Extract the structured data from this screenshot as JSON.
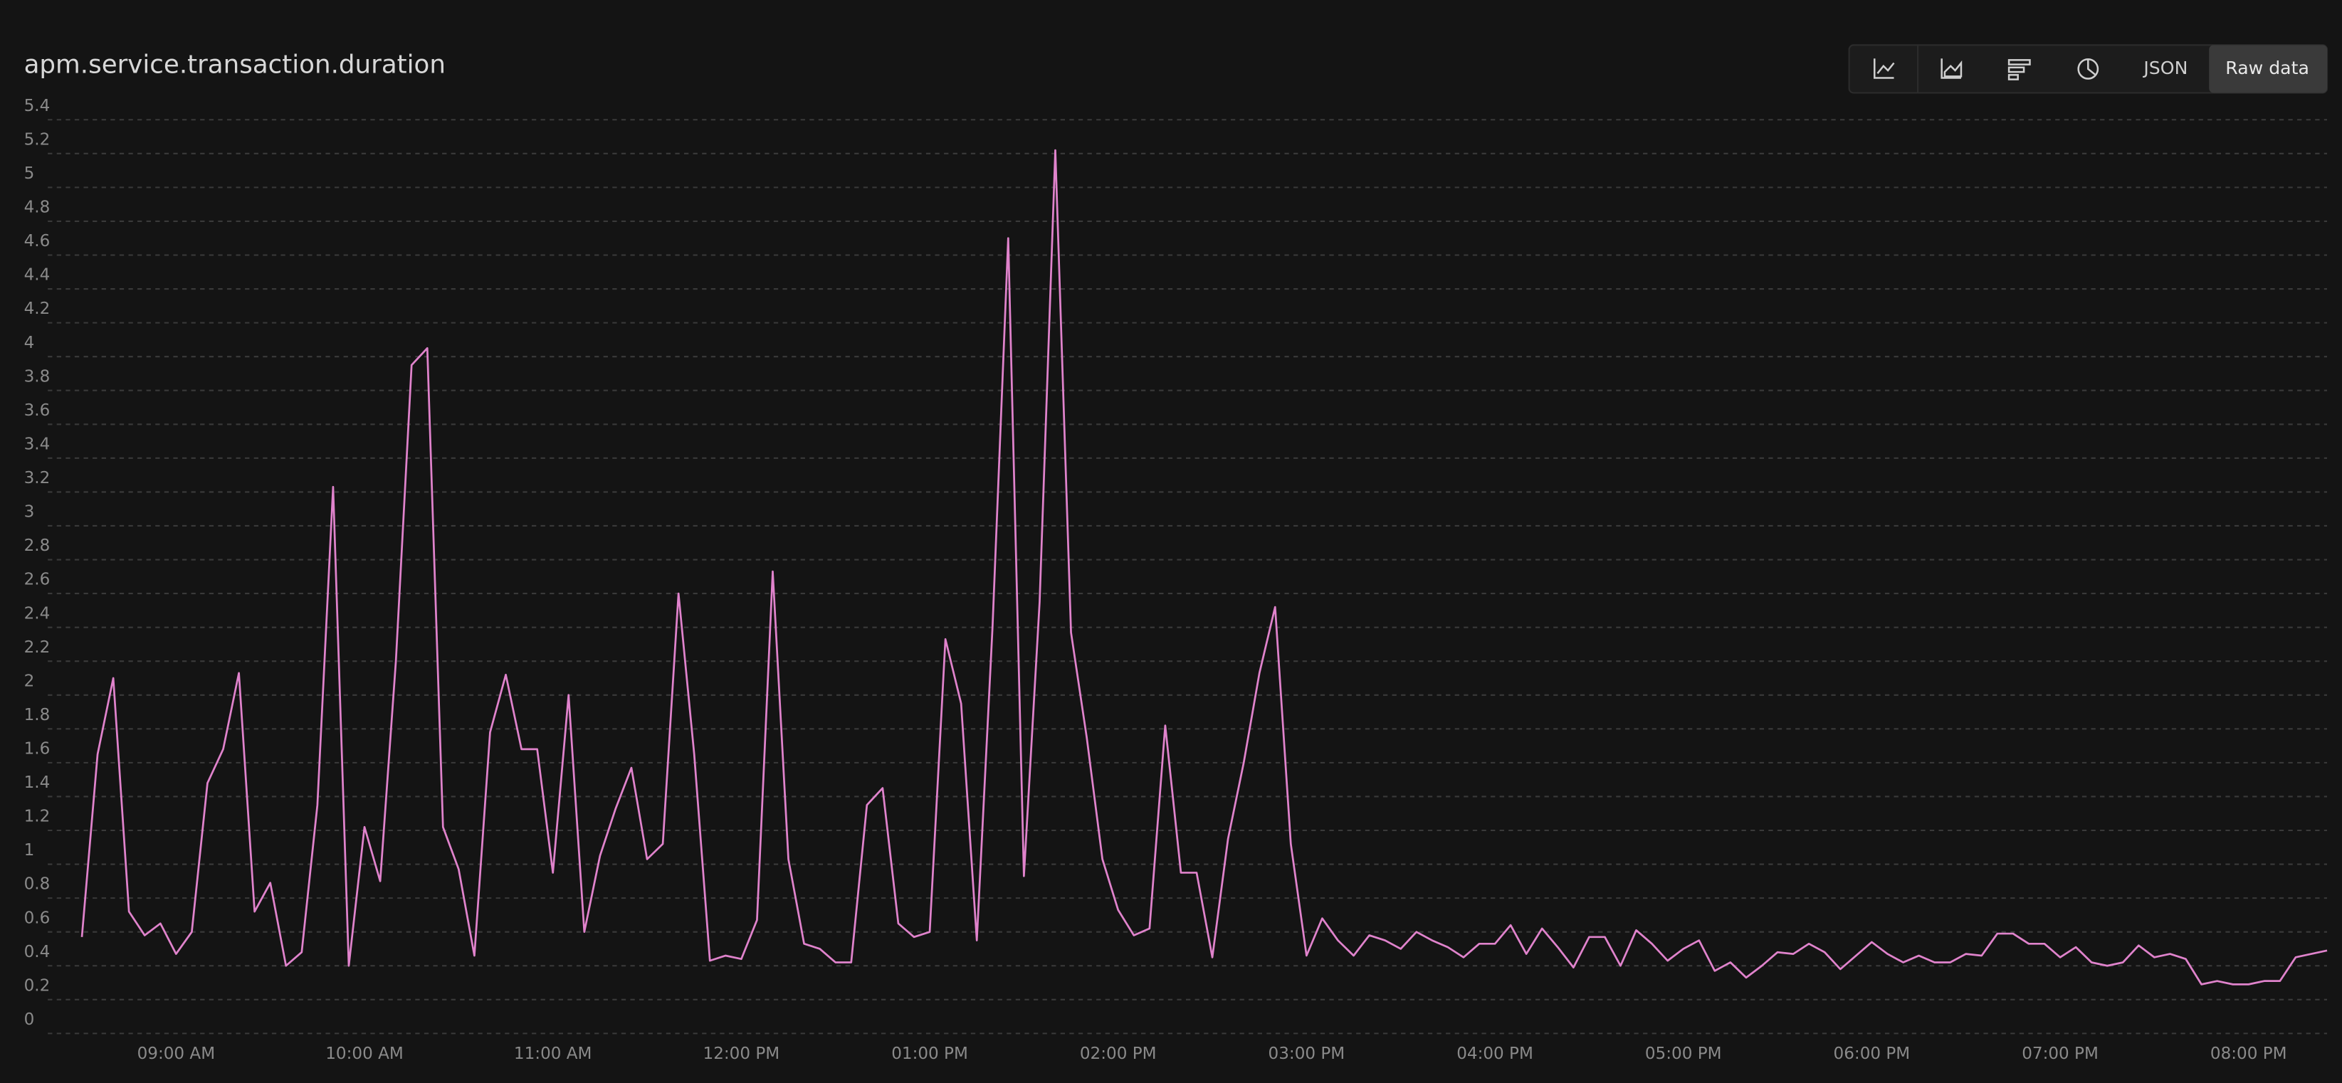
{
  "chart_data": {
    "type": "line",
    "title": "apm.service.transaction.duration",
    "color": "#e083cc",
    "grid": true,
    "x": [
      "08:30 AM",
      "08:35 AM",
      "08:40 AM",
      "08:45 AM",
      "08:50 AM",
      "08:55 AM",
      "09:00 AM",
      "09:05 AM",
      "09:10 AM",
      "09:15 AM",
      "09:20 AM",
      "09:25 AM",
      "09:30 AM",
      "09:35 AM",
      "09:40 AM",
      "09:45 AM",
      "09:50 AM",
      "09:55 AM",
      "10:00 AM",
      "10:05 AM",
      "10:10 AM",
      "10:15 AM",
      "10:20 AM",
      "10:25 AM",
      "10:30 AM",
      "10:35 AM",
      "10:40 AM",
      "10:45 AM",
      "10:50 AM",
      "10:55 AM",
      "11:00 AM",
      "11:05 AM",
      "11:10 AM",
      "11:15 AM",
      "11:20 AM",
      "11:25 AM",
      "11:30 AM",
      "11:35 AM",
      "11:40 AM",
      "11:45 AM",
      "11:50 AM",
      "11:55 AM",
      "12:00 PM",
      "12:05 PM",
      "12:10 PM",
      "12:15 PM",
      "12:20 PM",
      "12:25 PM",
      "12:30 PM",
      "12:35 PM",
      "12:40 PM",
      "12:45 PM",
      "12:50 PM",
      "12:55 PM",
      "01:00 PM",
      "01:05 PM",
      "01:10 PM",
      "01:15 PM",
      "01:20 PM",
      "01:25 PM",
      "01:30 PM",
      "01:35 PM",
      "01:40 PM",
      "01:45 PM",
      "01:50 PM",
      "01:55 PM",
      "02:00 PM",
      "02:05 PM",
      "02:10 PM",
      "02:15 PM",
      "02:20 PM",
      "02:25 PM",
      "02:30 PM",
      "02:35 PM",
      "02:40 PM",
      "02:45 PM",
      "02:50 PM",
      "02:55 PM",
      "03:00 PM",
      "03:05 PM",
      "03:10 PM",
      "03:15 PM",
      "03:20 PM",
      "03:25 PM",
      "03:30 PM",
      "03:35 PM",
      "03:40 PM",
      "03:45 PM",
      "03:50 PM",
      "03:55 PM",
      "04:00 PM",
      "04:05 PM",
      "04:10 PM",
      "04:15 PM",
      "04:20 PM",
      "04:25 PM",
      "04:30 PM",
      "04:35 PM",
      "04:40 PM",
      "04:45 PM",
      "04:50 PM",
      "04:55 PM",
      "05:00 PM",
      "05:05 PM",
      "05:10 PM",
      "05:15 PM",
      "05:20 PM",
      "05:25 PM",
      "05:30 PM",
      "05:35 PM",
      "05:40 PM",
      "05:45 PM",
      "05:50 PM",
      "05:55 PM",
      "06:00 PM",
      "06:05 PM",
      "06:10 PM",
      "06:15 PM",
      "06:20 PM",
      "06:25 PM",
      "06:30 PM",
      "06:35 PM",
      "06:40 PM",
      "06:45 PM",
      "06:50 PM",
      "06:55 PM",
      "07:00 PM",
      "07:05 PM",
      "07:10 PM",
      "07:15 PM",
      "07:20 PM",
      "07:25 PM",
      "07:30 PM",
      "07:35 PM",
      "07:40 PM",
      "07:45 PM",
      "07:50 PM",
      "07:55 PM",
      "08:00 PM",
      "08:05 PM",
      "08:10 PM",
      "08:15 PM",
      "08:20 PM",
      "08:25 PM"
    ],
    "values": [
      0.57,
      1.65,
      2.1,
      0.72,
      0.58,
      0.65,
      0.47,
      0.6,
      1.48,
      1.68,
      2.13,
      0.72,
      0.89,
      0.4,
      0.48,
      1.35,
      3.23,
      0.4,
      1.22,
      0.9,
      2.2,
      3.95,
      4.05,
      1.22,
      0.97,
      0.46,
      1.78,
      2.12,
      1.68,
      1.68,
      0.95,
      2.0,
      0.6,
      1.05,
      1.33,
      1.57,
      1.03,
      1.12,
      2.6,
      1.65,
      0.43,
      0.46,
      0.44,
      0.67,
      2.73,
      1.03,
      0.53,
      0.5,
      0.42,
      0.42,
      1.35,
      1.45,
      0.65,
      0.57,
      0.6,
      2.33,
      1.95,
      0.55,
      2.4,
      4.7,
      0.93,
      2.55,
      5.22,
      2.37,
      1.75,
      1.03,
      0.73,
      0.58,
      0.62,
      1.82,
      0.95,
      0.95,
      0.45,
      1.15,
      1.6,
      2.13,
      2.52,
      1.12,
      0.46,
      0.68,
      0.55,
      0.46,
      0.58,
      0.55,
      0.5,
      0.6,
      0.55,
      0.51,
      0.45,
      0.53,
      0.53,
      0.64,
      0.47,
      0.62,
      0.51,
      0.39,
      0.57,
      0.57,
      0.4,
      0.61,
      0.53,
      0.43,
      0.5,
      0.55,
      0.37,
      0.42,
      0.33,
      0.4,
      0.48,
      0.47,
      0.53,
      0.48,
      0.38,
      0.46,
      0.54,
      0.47,
      0.42,
      0.46,
      0.42,
      0.42,
      0.47,
      0.46,
      0.59,
      0.59,
      0.53,
      0.53,
      0.45,
      0.51,
      0.42,
      0.4,
      0.42,
      0.52,
      0.45,
      0.47,
      0.44,
      0.29,
      0.31,
      0.29,
      0.29,
      0.31,
      0.31,
      0.45,
      0.47,
      0.49
    ],
    "xlim": [
      "08:22 AM",
      "08:25 PM"
    ],
    "xticks": [
      "09:00 AM",
      "10:00 AM",
      "11:00 AM",
      "12:00 PM",
      "01:00 PM",
      "02:00 PM",
      "03:00 PM",
      "04:00 PM",
      "05:00 PM",
      "06:00 PM",
      "07:00 PM",
      "08:00 PM"
    ],
    "ylim": [
      0,
      5.4
    ],
    "yticks": [
      0,
      0.2,
      0.4,
      0.6,
      0.8,
      1,
      1.2,
      1.4,
      1.6,
      1.8,
      2,
      2.2,
      2.4,
      2.6,
      2.8,
      3,
      3.2,
      3.4,
      3.6,
      3.8,
      4,
      4.2,
      4.4,
      4.6,
      4.8,
      5,
      5.2,
      5.4
    ]
  },
  "toolbar": [
    "JSON",
    "Raw data"
  ]
}
